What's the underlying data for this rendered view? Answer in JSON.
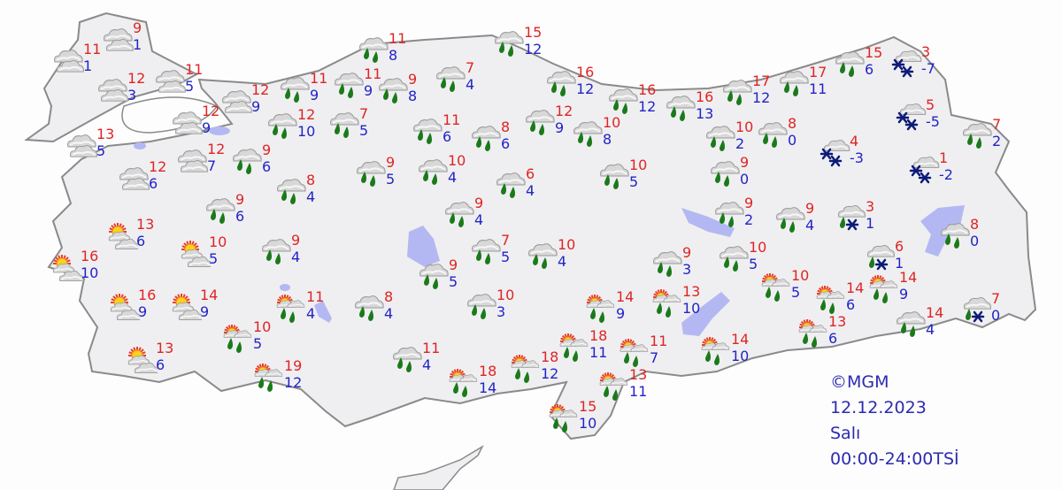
{
  "map": {
    "credit": "©MGM",
    "date": "12.12.2023",
    "weekday": "Salı",
    "period": "00:00-24:00TSİ",
    "colors": {
      "max_temp": "#e02424",
      "min_temp": "#2323c8",
      "land": "#efeff1",
      "border": "#8a8a8a",
      "water": "#b4b8f2",
      "rain": "#1a7a1a",
      "snow": "#0c1a78"
    },
    "stations": [
      {
        "icon": "cloudy",
        "max": "9",
        "min": "1"
      },
      {
        "icon": "cloudy",
        "max": "11",
        "min": "1"
      },
      {
        "icon": "cloudy",
        "max": "12",
        "min": "3"
      },
      {
        "icon": "cloudy",
        "max": "11",
        "min": "5"
      },
      {
        "icon": "cloudy",
        "max": "12",
        "min": "9"
      },
      {
        "icon": "cloudy",
        "max": "12",
        "min": "9"
      },
      {
        "icon": "cloudy",
        "max": "13",
        "min": "5"
      },
      {
        "icon": "cloudy",
        "max": "12",
        "min": "7"
      },
      {
        "icon": "cloudy",
        "max": "12",
        "min": "6"
      },
      {
        "icon": "rain",
        "max": "11",
        "min": "9"
      },
      {
        "icon": "rain",
        "max": "11",
        "min": "9"
      },
      {
        "icon": "rain",
        "max": "11",
        "min": "8"
      },
      {
        "icon": "rain",
        "max": "9",
        "min": "8"
      },
      {
        "icon": "rain",
        "max": "7",
        "min": "4"
      },
      {
        "icon": "rain",
        "max": "15",
        "min": "12"
      },
      {
        "icon": "rain",
        "max": "16",
        "min": "12"
      },
      {
        "icon": "rain",
        "max": "16",
        "min": "12"
      },
      {
        "icon": "rain",
        "max": "16",
        "min": "13"
      },
      {
        "icon": "rain",
        "max": "17",
        "min": "12"
      },
      {
        "icon": "rain",
        "max": "17",
        "min": "11"
      },
      {
        "icon": "rain",
        "max": "15",
        "min": "6"
      },
      {
        "icon": "snow",
        "max": "3",
        "min": "-7"
      },
      {
        "icon": "rain",
        "max": "12",
        "min": "10"
      },
      {
        "icon": "rain",
        "max": "7",
        "min": "5"
      },
      {
        "icon": "rain",
        "max": "11",
        "min": "6"
      },
      {
        "icon": "rain",
        "max": "8",
        "min": "6"
      },
      {
        "icon": "rain",
        "max": "12",
        "min": "9"
      },
      {
        "icon": "rain",
        "max": "10",
        "min": "8"
      },
      {
        "icon": "rain",
        "max": "10",
        "min": "2"
      },
      {
        "icon": "rain",
        "max": "8",
        "min": "0"
      },
      {
        "icon": "snow",
        "max": "5",
        "min": "-5"
      },
      {
        "icon": "snow",
        "max": "4",
        "min": "-3"
      },
      {
        "icon": "rain",
        "max": "7",
        "min": "2"
      },
      {
        "icon": "snow",
        "max": "1",
        "min": "-2"
      },
      {
        "icon": "rain",
        "max": "9",
        "min": "0"
      },
      {
        "icon": "rain",
        "max": "9",
        "min": "6"
      },
      {
        "icon": "rain",
        "max": "8",
        "min": "4"
      },
      {
        "icon": "rain",
        "max": "9",
        "min": "6"
      },
      {
        "icon": "rain",
        "max": "9",
        "min": "5"
      },
      {
        "icon": "rain",
        "max": "10",
        "min": "4"
      },
      {
        "icon": "rain",
        "max": "6",
        "min": "4"
      },
      {
        "icon": "rain",
        "max": "10",
        "min": "5"
      },
      {
        "icon": "rain",
        "max": "9",
        "min": "4"
      },
      {
        "icon": "rain",
        "max": "9",
        "min": "2"
      },
      {
        "icon": "rain",
        "max": "9",
        "min": "4"
      },
      {
        "icon": "rain-snow",
        "max": "3",
        "min": "1"
      },
      {
        "icon": "rain",
        "max": "8",
        "min": "0"
      },
      {
        "icon": "rain-snow",
        "max": "6",
        "min": "1"
      },
      {
        "icon": "rain",
        "max": "9",
        "min": "4"
      },
      {
        "icon": "rain",
        "max": "7",
        "min": "5"
      },
      {
        "icon": "rain",
        "max": "10",
        "min": "4"
      },
      {
        "icon": "rain",
        "max": "9",
        "min": "5"
      },
      {
        "icon": "rain",
        "max": "9",
        "min": "3"
      },
      {
        "icon": "rain",
        "max": "10",
        "min": "5"
      },
      {
        "icon": "partly-cloudy",
        "max": "13",
        "min": "6"
      },
      {
        "icon": "partly-cloudy",
        "max": "10",
        "min": "5"
      },
      {
        "icon": "partly-cloudy",
        "max": "16",
        "min": "10"
      },
      {
        "icon": "partly-cloudy",
        "max": "16",
        "min": "9"
      },
      {
        "icon": "partly-cloudy",
        "max": "14",
        "min": "9"
      },
      {
        "icon": "partly-cloudy",
        "max": "13",
        "min": "6"
      },
      {
        "icon": "sun-rain",
        "max": "11",
        "min": "4"
      },
      {
        "icon": "sun-rain",
        "max": "10",
        "min": "5"
      },
      {
        "icon": "sun-rain",
        "max": "19",
        "min": "12"
      },
      {
        "icon": "rain",
        "max": "8",
        "min": "4"
      },
      {
        "icon": "rain",
        "max": "10",
        "min": "3"
      },
      {
        "icon": "rain",
        "max": "11",
        "min": "4"
      },
      {
        "icon": "sun-rain",
        "max": "18",
        "min": "14"
      },
      {
        "icon": "sun-rain",
        "max": "18",
        "min": "12"
      },
      {
        "icon": "sun-rain",
        "max": "18",
        "min": "11"
      },
      {
        "icon": "sun-rain",
        "max": "14",
        "min": "9"
      },
      {
        "icon": "sun-rain",
        "max": "13",
        "min": "10"
      },
      {
        "icon": "sun-rain",
        "max": "11",
        "min": "7"
      },
      {
        "icon": "sun-rain",
        "max": "13",
        "min": "11"
      },
      {
        "icon": "sun-rain",
        "max": "15",
        "min": "10"
      },
      {
        "icon": "sun-rain",
        "max": "14",
        "min": "10"
      },
      {
        "icon": "sun-rain",
        "max": "10",
        "min": "5"
      },
      {
        "icon": "sun-rain",
        "max": "14",
        "min": "6"
      },
      {
        "icon": "sun-rain",
        "max": "14",
        "min": "9"
      },
      {
        "icon": "sun-rain",
        "max": "13",
        "min": "6"
      },
      {
        "icon": "rain",
        "max": "14",
        "min": "4"
      },
      {
        "icon": "rain-snow",
        "max": "7",
        "min": "0"
      }
    ]
  }
}
